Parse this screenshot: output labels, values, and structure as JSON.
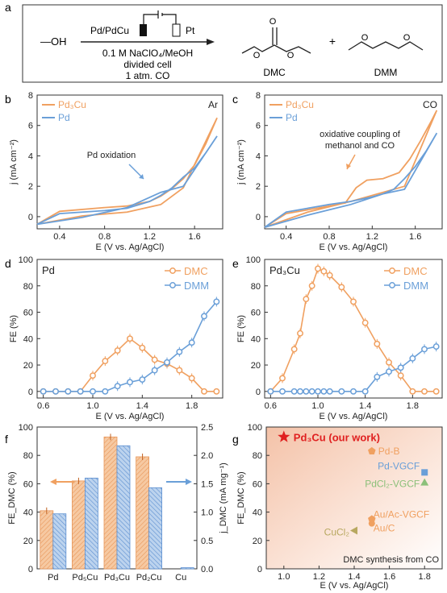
{
  "colors": {
    "orange": "#F0A060",
    "blue": "#6A9FD8",
    "red": "#E02020",
    "mustard": "#B8A860",
    "green": "#8CC07A",
    "grey": "#444444"
  },
  "panel_a": {
    "label": "a",
    "reactant": "—OH",
    "electrode_left": "Pd/PdCu",
    "electrode_right": "Pt",
    "conditions": [
      "0.1 M NaClO₄/MeOH",
      "divided cell",
      "1 atm. CO"
    ],
    "plus": "+",
    "product1": "DMC",
    "product2": "DMM"
  },
  "chart_data": [
    {
      "panel": "b",
      "type": "line",
      "atmosphere": "Ar",
      "xlabel": "E (V vs. Ag/AgCl)",
      "ylabel": "j (mA cm⁻²)",
      "xlim": [
        0.2,
        1.85
      ],
      "ylim": [
        -0.8,
        8
      ],
      "xticks": [
        "0.4",
        "0.8",
        "1.2",
        "1.6"
      ],
      "yticks": [
        "0",
        "2",
        "4",
        "6",
        "8"
      ],
      "legend": [
        "Pd₃Cu",
        "Pd"
      ],
      "annotation": "Pd oxidation",
      "series": [
        {
          "name": "Pd₃Cu",
          "color": "orange",
          "x": [
            0.2,
            0.4,
            0.8,
            1.0,
            1.2,
            1.3,
            1.4,
            1.5,
            1.6,
            1.7,
            1.8
          ],
          "y": [
            -0.5,
            0.35,
            0.6,
            0.7,
            1.0,
            1.35,
            1.85,
            2.5,
            3.4,
            4.8,
            6.5
          ],
          "x2": [
            1.8,
            1.5,
            1.3,
            1.0,
            0.6,
            0.2
          ],
          "y2": [
            6.5,
            1.9,
            0.8,
            0.3,
            0.05,
            -0.5
          ]
        },
        {
          "name": "Pd",
          "color": "blue",
          "x": [
            0.2,
            0.4,
            0.8,
            1.0,
            1.2,
            1.3,
            1.4,
            1.5,
            1.6,
            1.7,
            1.8
          ],
          "y": [
            -0.5,
            0.2,
            0.4,
            0.55,
            1.0,
            1.4,
            1.9,
            2.6,
            3.2,
            4.2,
            5.3
          ],
          "x2": [
            1.8,
            1.5,
            1.3,
            1.0,
            0.6,
            0.2
          ],
          "y2": [
            5.3,
            2.0,
            1.6,
            0.6,
            -0.05,
            -0.5
          ]
        }
      ]
    },
    {
      "panel": "c",
      "type": "line",
      "atmosphere": "CO",
      "xlabel": "E (V vs. Ag/AgCl)",
      "ylabel": "j (mA cm⁻²)",
      "xlim": [
        0.2,
        1.85
      ],
      "ylim": [
        -0.8,
        8
      ],
      "xticks": [
        "0.4",
        "0.8",
        "1.2",
        "1.6"
      ],
      "yticks": [
        "0",
        "2",
        "4",
        "6",
        "8"
      ],
      "legend": [
        "Pd₃Cu",
        "Pd"
      ],
      "annotation": "oxidative coupling of methanol and CO",
      "series": [
        {
          "name": "Pd₃Cu",
          "color": "orange",
          "x": [
            0.2,
            0.4,
            0.8,
            0.95,
            1.05,
            1.15,
            1.3,
            1.45,
            1.55,
            1.65,
            1.75,
            1.8
          ],
          "y": [
            -0.7,
            0.2,
            0.7,
            0.9,
            1.9,
            2.4,
            2.5,
            2.9,
            3.8,
            5.0,
            6.3,
            7.0
          ],
          "x2": [
            1.8,
            1.5,
            1.3,
            1.0,
            0.6,
            0.2
          ],
          "y2": [
            7.0,
            2.0,
            1.6,
            1.0,
            0.3,
            -0.7
          ]
        },
        {
          "name": "Pd",
          "color": "blue",
          "x": [
            0.2,
            0.4,
            0.8,
            1.0,
            1.2,
            1.3,
            1.4,
            1.5,
            1.6,
            1.7,
            1.8
          ],
          "y": [
            -0.7,
            0.3,
            0.8,
            1.0,
            1.3,
            1.5,
            1.8,
            2.5,
            3.3,
            4.3,
            5.5
          ],
          "x2": [
            1.8,
            1.5,
            1.3,
            1.0,
            0.6,
            0.2
          ],
          "y2": [
            5.5,
            1.8,
            1.5,
            0.8,
            0.1,
            -0.7
          ]
        }
      ]
    },
    {
      "panel": "d",
      "type": "line",
      "title": "Pd",
      "xlabel": "E (V vs. Ag/AgCl)",
      "ylabel": "FE (%)",
      "xlim": [
        0.55,
        2.05
      ],
      "ylim": [
        -5,
        100
      ],
      "xticks": [
        "0.6",
        "1.0",
        "1.4",
        "1.8"
      ],
      "yticks": [
        "0",
        "20",
        "40",
        "60",
        "80",
        "100"
      ],
      "x": [
        0.6,
        0.7,
        0.8,
        0.9,
        1.0,
        1.1,
        1.2,
        1.3,
        1.4,
        1.5,
        1.6,
        1.7,
        1.8,
        1.9,
        2.0
      ],
      "series": [
        {
          "name": "DMC",
          "color": "orange",
          "values": [
            0,
            0,
            0,
            0,
            12,
            23,
            31,
            40,
            33,
            24,
            21,
            16,
            10,
            0,
            0
          ]
        },
        {
          "name": "DMM",
          "color": "blue",
          "values": [
            0,
            0,
            0,
            0,
            0,
            0,
            4,
            7,
            9,
            16,
            22,
            30,
            37,
            57,
            68
          ]
        }
      ]
    },
    {
      "panel": "e",
      "type": "line",
      "title": "Pd₃Cu",
      "xlabel": "E (V vs. Ag/AgCl)",
      "ylabel": "FE (%)",
      "xlim": [
        0.55,
        2.05
      ],
      "ylim": [
        -5,
        100
      ],
      "xticks": [
        "0.6",
        "1.0",
        "1.4",
        "1.8"
      ],
      "yticks": [
        "0",
        "20",
        "40",
        "60",
        "80",
        "100"
      ],
      "x": [
        0.6,
        0.7,
        0.8,
        0.85,
        0.9,
        0.95,
        1.0,
        1.05,
        1.1,
        1.2,
        1.3,
        1.4,
        1.5,
        1.6,
        1.7,
        1.8,
        1.9,
        2.0
      ],
      "series": [
        {
          "name": "DMC",
          "color": "orange",
          "values": [
            0,
            10,
            32,
            44,
            70,
            80,
            93,
            91,
            88,
            79,
            68,
            52,
            36,
            22,
            12,
            0,
            0,
            0
          ]
        },
        {
          "name": "DMM",
          "color": "blue",
          "values": [
            0,
            0,
            0,
            0,
            0,
            0,
            0,
            0,
            0,
            0,
            0,
            0,
            11,
            15,
            18,
            25,
            32,
            34
          ]
        }
      ]
    },
    {
      "panel": "f",
      "type": "bar",
      "categories": [
        "Pd",
        "Pd₅Cu",
        "Pd₃Cu",
        "Pd₂Cu",
        "Cu"
      ],
      "ylabel": "FE_DMC (%)",
      "y2label": "j_DMC (mA mg⁻¹)",
      "ylim": [
        0,
        100
      ],
      "y2lim": [
        0,
        2.5
      ],
      "yticks": [
        "0",
        "20",
        "40",
        "60",
        "80",
        "100"
      ],
      "y2ticks": [
        "0.0",
        "0.5",
        "1.0",
        "1.5",
        "2.0",
        "2.5"
      ],
      "series": [
        {
          "name": "FE",
          "color": "orange",
          "values": [
            41,
            62,
            93,
            79,
            0
          ]
        },
        {
          "name": "j",
          "color": "blue",
          "values": [
            0.97,
            1.6,
            2.17,
            1.43,
            0.02
          ]
        }
      ]
    },
    {
      "panel": "g",
      "type": "scatter",
      "xlabel": "E (V vs. Ag/AgCl)",
      "ylabel": "FE_DMC (%)",
      "xlim": [
        0.9,
        1.9
      ],
      "ylim": [
        0,
        100
      ],
      "xticks": [
        "1.0",
        "1.2",
        "1.4",
        "1.6",
        "1.8"
      ],
      "yticks": [
        "0",
        "20",
        "40",
        "60",
        "80",
        "100"
      ],
      "footer": "DMC synthesis from CO",
      "points": [
        {
          "label": "Pd₃Cu (our work)",
          "x": 1.0,
          "y": 93,
          "marker": "star",
          "color": "red"
        },
        {
          "label": "Pd-B",
          "x": 1.5,
          "y": 83,
          "marker": "pentagon",
          "color": "orange"
        },
        {
          "label": "Pd-VGCF",
          "x": 1.8,
          "y": 68,
          "marker": "square",
          "color": "blue"
        },
        {
          "label": "PdCl₂-VGCF",
          "x": 1.8,
          "y": 61,
          "marker": "triangle",
          "color": "green"
        },
        {
          "label": "Au/Ac-VGCF",
          "x": 1.5,
          "y": 35,
          "marker": "pentagon",
          "color": "orange"
        },
        {
          "label": "Au/C",
          "x": 1.5,
          "y": 32,
          "marker": "circle",
          "color": "orange"
        },
        {
          "label": "CuCl₂",
          "x": 1.4,
          "y": 27,
          "marker": "triangle-left",
          "color": "mustard"
        }
      ]
    }
  ]
}
